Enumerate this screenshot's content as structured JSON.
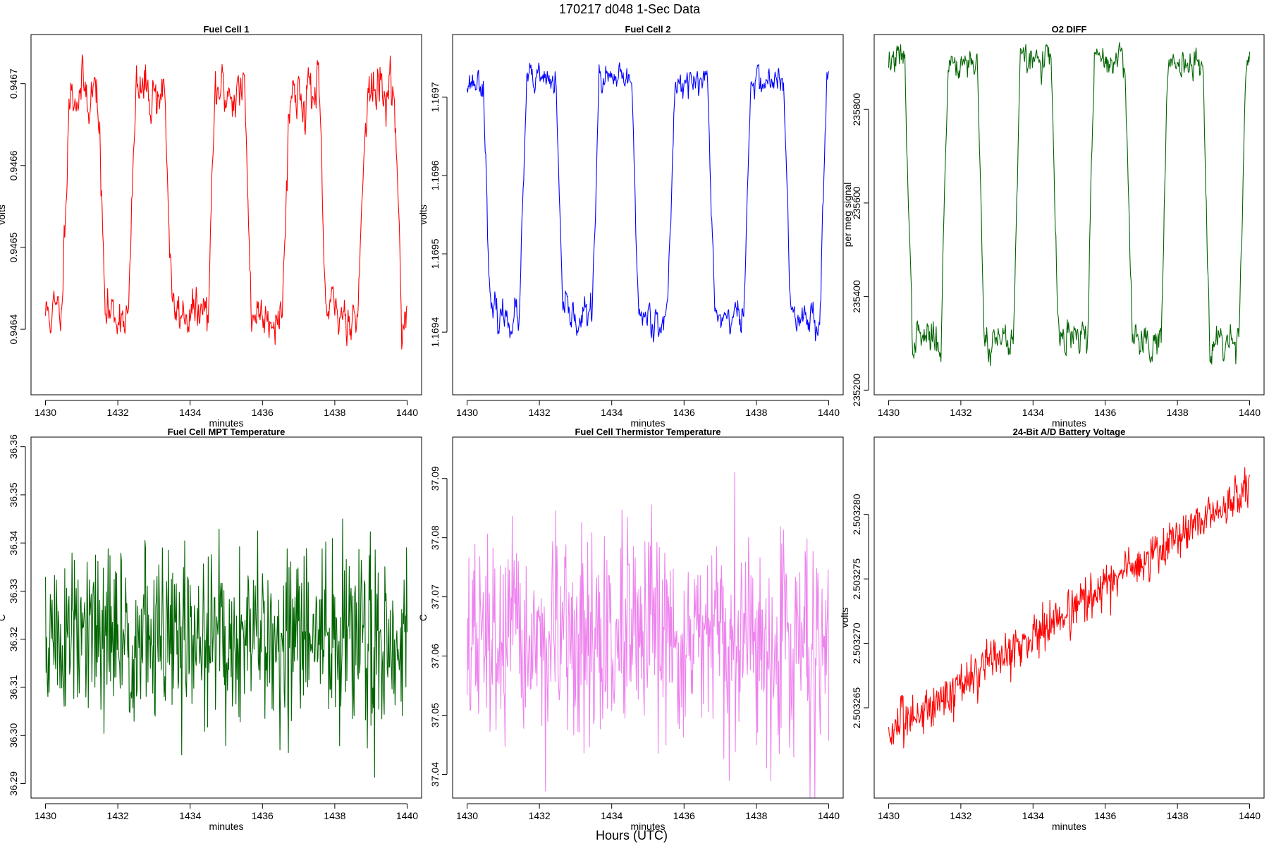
{
  "figure": {
    "title": "170217   d048   1-Sec Data",
    "xlabel_global": "Hours (UTC)"
  },
  "chart_data": [
    {
      "type": "line",
      "title": "Fuel Cell 1",
      "xlabel": "minutes",
      "ylabel": "volts",
      "color": "#ff0000",
      "xlim": [
        1429.6,
        1440.4
      ],
      "xticks": [
        1430,
        1432,
        1434,
        1436,
        1438,
        1440
      ],
      "xtick_labels": [
        "1430",
        "1432",
        "1434",
        "1436",
        "1438",
        "1440"
      ],
      "ylim": [
        0.94632,
        0.94676
      ],
      "yticks": [
        0.9464,
        0.9465,
        0.9466,
        0.9467
      ],
      "ytick_labels": [
        "0.9464",
        "0.9465",
        "0.9466",
        "0.9467"
      ],
      "signal": {
        "form": "square",
        "x_start": 1430,
        "x_end": 1440,
        "n": 601,
        "low": 0.94642,
        "high": 0.94669,
        "start_high": false,
        "transitions": [
          1430.45,
          1431.45,
          1432.3,
          1433.3,
          1434.5,
          1435.5,
          1436.55,
          1437.55,
          1438.65,
          1439.65
        ],
        "ramp": 0.2,
        "noise_low": 1.5e-05,
        "noise_high": 1.8e-05,
        "trend": 0,
        "seed": 11
      }
    },
    {
      "type": "line",
      "title": "Fuel Cell 2",
      "xlabel": "minutes",
      "ylabel": "volts",
      "color": "#0000ff",
      "xlim": [
        1429.6,
        1440.4
      ],
      "xticks": [
        1430,
        1432,
        1434,
        1436,
        1438,
        1440
      ],
      "xtick_labels": [
        "1430",
        "1432",
        "1434",
        "1436",
        "1438",
        "1440"
      ],
      "ylim": [
        1.16932,
        1.16978
      ],
      "yticks": [
        1.1694,
        1.1695,
        1.1696,
        1.1697
      ],
      "ytick_labels": [
        "1.1694",
        "1.1695",
        "1.1696",
        "1.1697"
      ],
      "signal": {
        "form": "square",
        "x_start": 1430,
        "x_end": 1440,
        "n": 601,
        "low": 1.16942,
        "high": 1.16972,
        "start_high": true,
        "transitions": [
          1430.45,
          1431.45,
          1432.45,
          1433.45,
          1434.55,
          1435.55,
          1436.65,
          1437.65,
          1438.75,
          1439.75
        ],
        "ramp": 0.2,
        "noise_low": 1.2e-05,
        "noise_high": 1e-05,
        "trend": 0,
        "seed": 23
      }
    },
    {
      "type": "line",
      "title": "O2 DIFF",
      "xlabel": "minutes",
      "ylabel": "per meg signal",
      "color": "#006400",
      "xlim": [
        1429.6,
        1440.4
      ],
      "xticks": [
        1430,
        1432,
        1434,
        1436,
        1438,
        1440
      ],
      "xtick_labels": [
        "1430",
        "1432",
        "1434",
        "1436",
        "1438",
        "1440"
      ],
      "ylim": [
        235190,
        235960
      ],
      "yticks": [
        235200,
        235400,
        235600,
        235800
      ],
      "ytick_labels": [
        "235200",
        "235400",
        "235600",
        "235800"
      ],
      "signal": {
        "form": "square",
        "x_start": 1430,
        "x_end": 1440,
        "n": 601,
        "low": 235310,
        "high": 235905,
        "start_high": true,
        "transitions": [
          1430.45,
          1431.45,
          1432.45,
          1433.45,
          1434.5,
          1435.5,
          1436.55,
          1437.55,
          1438.7,
          1439.7
        ],
        "ramp": 0.2,
        "noise_low": 22,
        "noise_high": 18,
        "trend": 0,
        "seed": 37
      }
    },
    {
      "type": "line",
      "title": "Fuel Cell MPT Temperature",
      "xlabel": "minutes",
      "ylabel": "C",
      "color": "#006400",
      "xlim": [
        1429.6,
        1440.4
      ],
      "xticks": [
        1430,
        1432,
        1434,
        1436,
        1438,
        1440
      ],
      "xtick_labels": [
        "1430",
        "1432",
        "1434",
        "1436",
        "1438",
        "1440"
      ],
      "ylim": [
        36.287,
        36.362
      ],
      "yticks": [
        36.29,
        36.3,
        36.31,
        36.32,
        36.33,
        36.34,
        36.35,
        36.36
      ],
      "ytick_labels": [
        "36.29",
        "36.30",
        "36.31",
        "36.32",
        "36.33",
        "36.34",
        "36.35",
        "36.36"
      ],
      "signal": {
        "form": "noise",
        "x_start": 1430,
        "x_end": 1440,
        "n": 601,
        "base": 36.32,
        "noise": 0.0095,
        "trend": 0,
        "seed": 51
      }
    },
    {
      "type": "line",
      "title": "Fuel Cell Thermistor Temperature",
      "xlabel": "minutes",
      "ylabel": "C",
      "color": "#ee82ee",
      "xlim": [
        1429.6,
        1440.4
      ],
      "xticks": [
        1430,
        1432,
        1434,
        1436,
        1438,
        1440
      ],
      "xtick_labels": [
        "1430",
        "1432",
        "1434",
        "1436",
        "1438",
        "1440"
      ],
      "ylim": [
        37.036,
        37.097
      ],
      "yticks": [
        37.04,
        37.05,
        37.06,
        37.07,
        37.08,
        37.09
      ],
      "ytick_labels": [
        "37.04",
        "37.05",
        "37.06",
        "37.07",
        "37.08",
        "37.09"
      ],
      "signal": {
        "form": "noise",
        "x_start": 1430,
        "x_end": 1440,
        "n": 601,
        "base": 37.062,
        "noise": 0.0085,
        "trend": 0,
        "seed": 67
      }
    },
    {
      "type": "line",
      "title": "24-Bit A/D Battery Voltage",
      "xlabel": "minutes",
      "ylabel": "volts",
      "color": "#ff0000",
      "xlim": [
        1429.6,
        1440.4
      ],
      "xticks": [
        1430,
        1432,
        1434,
        1436,
        1438,
        1440
      ],
      "xtick_labels": [
        "1430",
        "1432",
        "1434",
        "1436",
        "1438",
        "1440"
      ],
      "ylim": [
        2.503258,
        2.503286
      ],
      "yticks": [
        2.503265,
        2.50327,
        2.503275,
        2.50328
      ],
      "ytick_labels": [
        "2.503265",
        "2.503270",
        "2.503275",
        "2.503280"
      ],
      "signal": {
        "form": "noise",
        "x_start": 1430,
        "x_end": 1440,
        "n": 601,
        "base": 2.503263,
        "noise": 9e-07,
        "trend": 1.9e-06,
        "seed": 83
      }
    }
  ]
}
